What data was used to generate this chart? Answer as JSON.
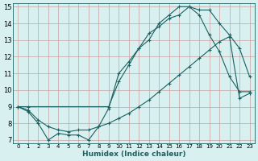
{
  "xlabel": "Humidex (Indice chaleur)",
  "bg_color": "#d8f0f0",
  "grid_color": "#c8a0a0",
  "line_color": "#1a6060",
  "xlim": [
    -0.5,
    23.5
  ],
  "ylim": [
    6.8,
    15.2
  ],
  "xticks": [
    0,
    1,
    2,
    3,
    4,
    5,
    6,
    7,
    8,
    9,
    10,
    11,
    12,
    13,
    14,
    15,
    16,
    17,
    18,
    19,
    20,
    21,
    22,
    23
  ],
  "yticks": [
    7,
    8,
    9,
    10,
    11,
    12,
    13,
    14,
    15
  ],
  "line1_x": [
    0,
    1,
    2,
    3,
    4,
    5,
    6,
    7,
    8,
    9,
    10,
    11,
    12,
    13,
    14,
    15,
    16,
    17,
    18,
    19,
    20,
    21,
    22,
    23
  ],
  "line1_y": [
    9.0,
    8.7,
    8.0,
    7.0,
    7.4,
    7.3,
    7.3,
    7.0,
    7.8,
    8.9,
    11.0,
    11.7,
    12.5,
    13.4,
    13.8,
    14.3,
    14.5,
    15.0,
    14.5,
    13.3,
    12.3,
    10.8,
    9.9,
    9.9
  ],
  "line2_x": [
    0,
    1,
    2,
    3,
    4,
    5,
    6,
    7,
    8,
    9,
    10,
    11,
    12,
    13,
    14,
    15,
    16,
    17,
    18,
    19,
    20,
    21,
    22,
    23
  ],
  "line2_y": [
    9.0,
    8.8,
    8.2,
    7.8,
    7.6,
    7.5,
    7.6,
    7.6,
    7.8,
    8.0,
    8.3,
    8.6,
    9.0,
    9.4,
    9.9,
    10.4,
    10.9,
    11.4,
    11.9,
    12.4,
    12.9,
    13.2,
    9.5,
    9.8
  ],
  "line3_x": [
    0,
    1,
    9,
    10,
    11,
    12,
    13,
    14,
    15,
    16,
    17,
    18,
    19,
    20,
    21,
    22,
    23
  ],
  "line3_y": [
    9.0,
    9.0,
    9.0,
    10.5,
    11.5,
    12.5,
    13.0,
    14.0,
    14.5,
    15.0,
    15.0,
    14.8,
    14.8,
    14.0,
    13.3,
    12.5,
    10.8
  ]
}
